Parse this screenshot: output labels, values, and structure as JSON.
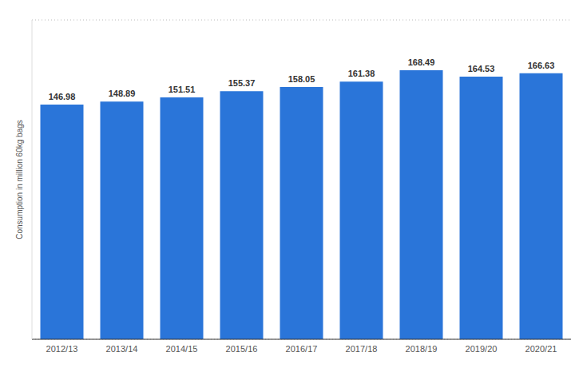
{
  "chart_data": {
    "type": "bar",
    "y_label": "Consumption in million 60kg bags",
    "categories": [
      "2012/13",
      "2013/14",
      "2014/15",
      "2015/16",
      "2016/17",
      "2017/18",
      "2018/19",
      "2019/20",
      "2020/21"
    ],
    "values": [
      146.98,
      148.89,
      151.51,
      155.37,
      158.05,
      161.38,
      168.49,
      164.53,
      166.63
    ],
    "color": "#2a75d9",
    "ylim": [
      0,
      200
    ],
    "yticks": [
      0,
      25,
      50,
      75,
      100,
      125,
      150,
      175,
      200
    ],
    "grid": true,
    "data_labels": true,
    "tick_labels": "x"
  }
}
